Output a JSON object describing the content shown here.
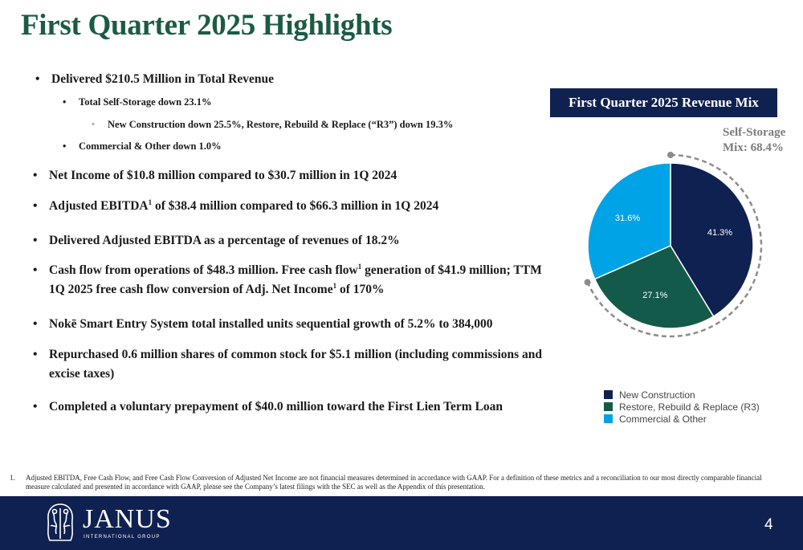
{
  "title": "First Quarter 2025 Highlights",
  "bullets": {
    "b1": "Delivered $210.5 Million in Total Revenue",
    "b1a": "Total Self-Storage down 23.1%",
    "b1a1": "New Construction down 25.5%, Restore, Rebuild & Replace (“R3”)  down 19.3%",
    "b1b": "Commercial & Other down 1.0%",
    "b2": "Net Income of $10.8 million compared to $30.7 million in 1Q 2024",
    "b3_pre": "Adjusted EBITDA",
    "b3_sup": "1",
    "b3_post": " of $38.4 million compared to $66.3 million in 1Q 2024",
    "b4": "Delivered Adjusted EBITDA as a percentage of revenues of 18.2%",
    "b5_pre": "Cash flow from operations of $48.3 million. Free cash flow",
    "b5_sup": "1",
    "b5_post": " generation of $41.9 million; TTM",
    "b5_line2_pre": "1Q 2025 free cash flow conversion of Adj. Net Income",
    "b5_line2_sup": "1",
    "b5_line2_post": " of 170%",
    "b6": "Nokē Smart Entry System total installed units sequential growth of 5.2% to 384,000",
    "b7": "Repurchased 0.6 million shares of common stock for $5.1 million (including commissions and",
    "b7_line2": "excise taxes)",
    "b8": "Completed a voluntary prepayment of $40.0 million toward the First Lien Term Loan"
  },
  "revenue_mix": {
    "header": "First Quarter 2025 Revenue Mix",
    "self_storage_label_1": "Self-Storage",
    "self_storage_label_2": "Mix: 68.4%"
  },
  "chart_data": {
    "type": "pie",
    "title": "First Quarter 2025 Revenue Mix",
    "slices": [
      {
        "label": "New Construction",
        "value": 41.3,
        "display": "41.3%",
        "color": "#0f2150"
      },
      {
        "label": "Restore, Rebuild & Replace (R3)",
        "value": 27.1,
        "display": "27.1%",
        "color": "#145a4a"
      },
      {
        "label": "Commercial & Other",
        "value": 31.6,
        "display": "31.6%",
        "color": "#00a3e6"
      }
    ],
    "annotation": "Self-Storage Mix: 68.4%",
    "legend_position": "bottom"
  },
  "footnote": {
    "number": "1.",
    "text": "Adjusted EBITDA, Free Cash Flow, and Free Cash Flow Conversion of Adjusted Net Income are not financial measures determined in accordance with GAAP. For a definition of these metrics and a reconciliation to our most directly comparable financial measure calculated and presented in accordance with GAAP, please see the Company’s latest filings with the SEC as well as the Appendix of this presentation."
  },
  "footer": {
    "logo_word": "JANUS",
    "logo_sub": "INTERNATIONAL GROUP",
    "page_number": "4"
  },
  "colors": {
    "title_green": "#1b5b44",
    "navy": "#0f2150",
    "teal": "#145a4a",
    "sky": "#00a3e6",
    "annotation_gray": "#7b7b7b"
  }
}
